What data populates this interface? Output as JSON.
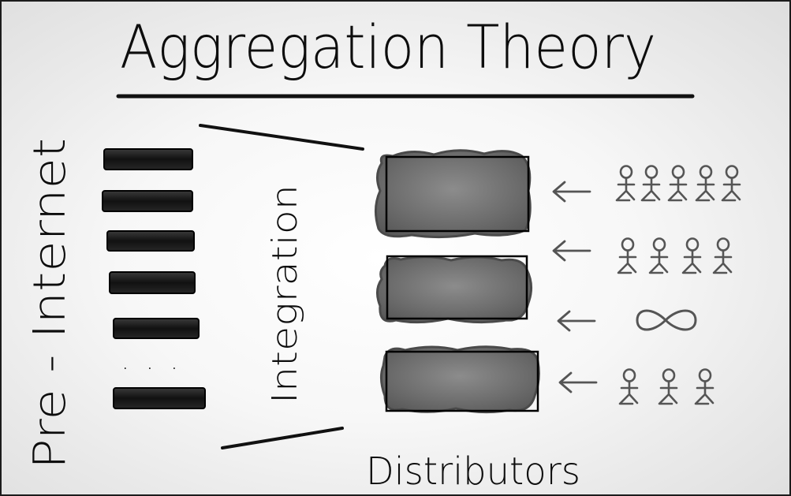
{
  "title": "Aggregation Theory",
  "labels": {
    "pre_internet": "Pre - Internet",
    "integration": "Integration",
    "distributors": "Distributors",
    "ellipsis": ". . ."
  },
  "colors": {
    "ink": "#0d0d0d",
    "block_gray": "#6e6e6e",
    "smudge": "#5a5a5a",
    "bar_dark": "#141414"
  },
  "icons": [
    "arrow-left-icon",
    "person-icon",
    "infinity-icon"
  ]
}
